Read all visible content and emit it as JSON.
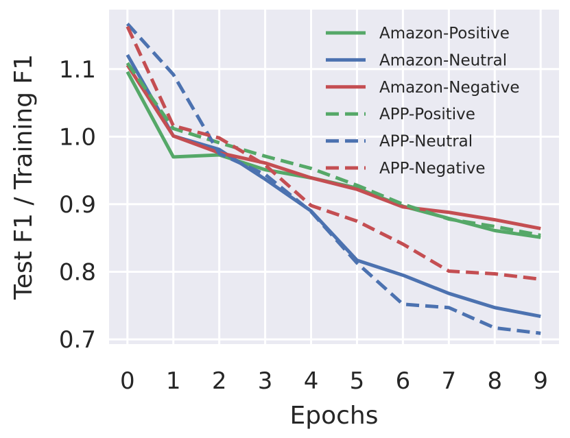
{
  "chart_data": {
    "type": "line",
    "title": "",
    "xlabel": "Epochs",
    "ylabel": "Test F1 / Training F1",
    "x": [
      0,
      1,
      2,
      3,
      4,
      5,
      6,
      7,
      8,
      9
    ],
    "xlim": [
      -0.4,
      9.4
    ],
    "ylim": [
      0.693,
      1.188
    ],
    "xticks": [
      "0",
      "1",
      "2",
      "3",
      "4",
      "5",
      "6",
      "7",
      "8",
      "9"
    ],
    "yticks": [
      0.7,
      0.8,
      0.9,
      1.0,
      1.1
    ],
    "ytick_labels": [
      "0.7",
      "0.8",
      "0.9",
      "1.0",
      "1.1"
    ],
    "grid": true,
    "legend_position": "top-right",
    "series": [
      {
        "name": "Amazon-Positive",
        "color": "#55a868",
        "style": "solid",
        "values": [
          1.096,
          0.97,
          0.973,
          0.951,
          0.939,
          0.924,
          0.897,
          0.879,
          0.861,
          0.851
        ]
      },
      {
        "name": "Amazon-Neutral",
        "color": "#4c72b0",
        "style": "solid",
        "values": [
          1.121,
          1.001,
          0.981,
          0.937,
          0.89,
          0.817,
          0.795,
          0.768,
          0.747,
          0.734
        ]
      },
      {
        "name": "Amazon-Negative",
        "color": "#c44e52",
        "style": "solid",
        "values": [
          1.106,
          1.001,
          0.976,
          0.961,
          0.939,
          0.922,
          0.896,
          0.888,
          0.877,
          0.864
        ]
      },
      {
        "name": "APP-Positive",
        "color": "#55a868",
        "style": "dashed",
        "values": [
          1.109,
          1.012,
          0.991,
          0.971,
          0.953,
          0.928,
          0.9,
          0.878,
          0.867,
          0.854
        ]
      },
      {
        "name": "APP-Neutral",
        "color": "#4c72b0",
        "style": "dashed",
        "values": [
          1.167,
          1.092,
          0.975,
          0.944,
          0.889,
          0.813,
          0.752,
          0.747,
          0.717,
          0.709
        ]
      },
      {
        "name": "APP-Negative",
        "color": "#c44e52",
        "style": "dashed",
        "values": [
          1.163,
          1.016,
          0.998,
          0.958,
          0.898,
          0.875,
          0.841,
          0.801,
          0.797,
          0.789
        ]
      }
    ]
  }
}
